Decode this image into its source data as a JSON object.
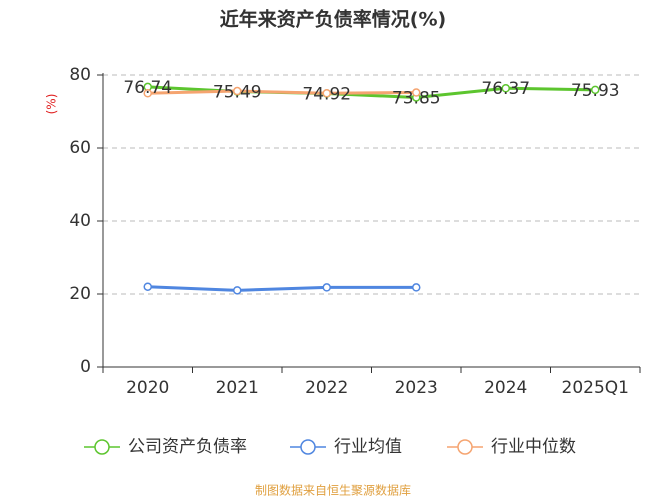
{
  "chart_data": {
    "type": "line",
    "title": "近年来资产负债率情况(%)",
    "y_label": "(%)",
    "categories": [
      "2020",
      "2021",
      "2022",
      "2023",
      "2024",
      "2025Q1"
    ],
    "series": [
      {
        "name": "公司资产负债率",
        "color": "#5cc52e",
        "values": [
          76.74,
          75.49,
          74.92,
          73.85,
          76.37,
          75.93
        ],
        "data_labels": true
      },
      {
        "name": "行业均值",
        "color": "#4f86e0",
        "values": [
          22.0,
          21.0,
          21.8,
          21.8,
          null,
          null
        ]
      },
      {
        "name": "行业中位数",
        "color": "#f5a470",
        "values": [
          75.0,
          75.6,
          75.0,
          75.2,
          null,
          null
        ]
      }
    ],
    "ylim": [
      0,
      80
    ],
    "yticks": [
      0,
      20,
      40,
      60,
      80
    ],
    "grid": true,
    "source": "制图数据来自恒生聚源数据库"
  }
}
